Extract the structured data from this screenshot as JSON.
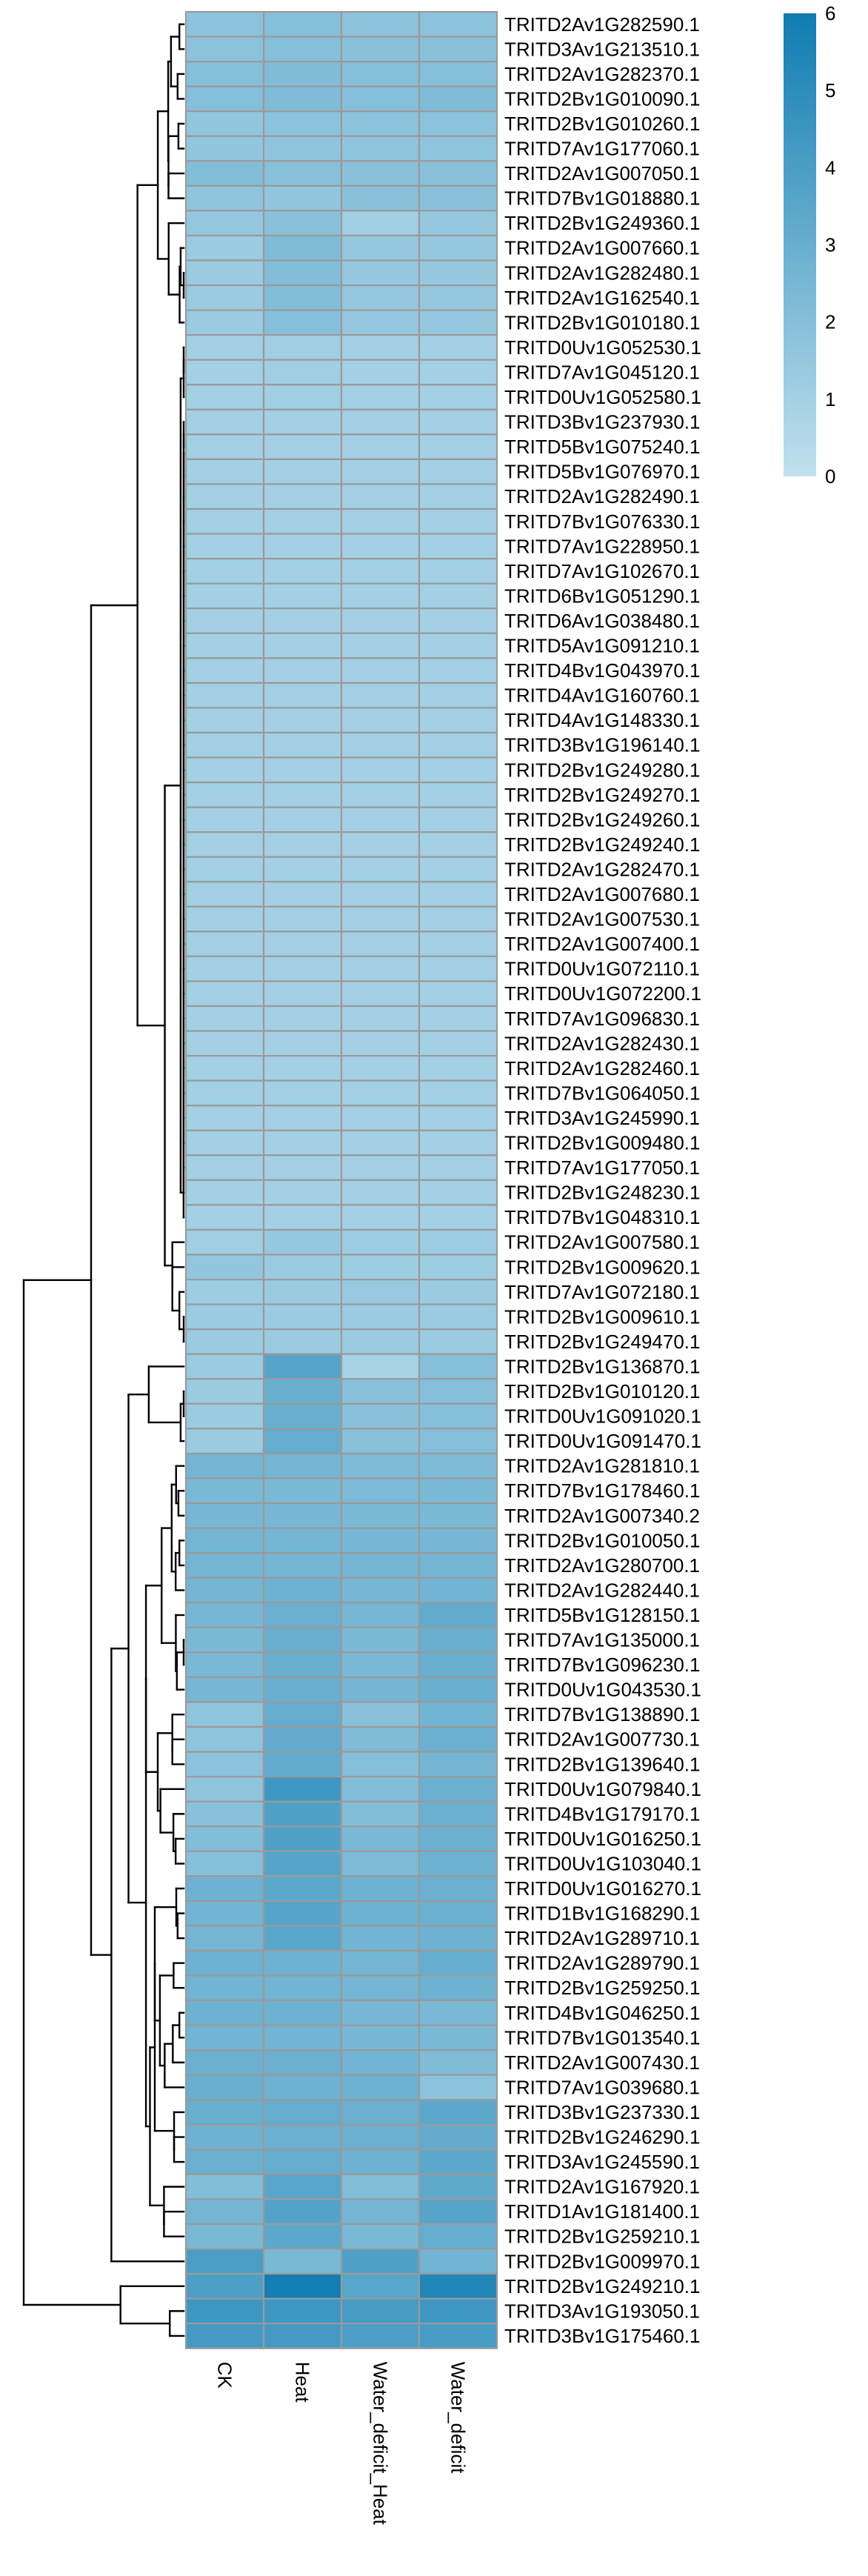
{
  "chart_data": {
    "type": "heatmap",
    "title": "",
    "columns": [
      "CK",
      "Heat",
      "Water_deficit_Heat",
      "Water_deficit"
    ],
    "rows": [
      "TRITD2Av1G282590.1",
      "TRITD3Av1G213510.1",
      "TRITD2Av1G282370.1",
      "TRITD2Bv1G010090.1",
      "TRITD2Bv1G010260.1",
      "TRITD7Av1G177060.1",
      "TRITD2Av1G007050.1",
      "TRITD7Bv1G018880.1",
      "TRITD2Bv1G249360.1",
      "TRITD2Av1G007660.1",
      "TRITD2Av1G282480.1",
      "TRITD2Av1G162540.1",
      "TRITD2Bv1G010180.1",
      "TRITD0Uv1G052530.1",
      "TRITD7Av1G045120.1",
      "TRITD0Uv1G052580.1",
      "TRITD3Bv1G237930.1",
      "TRITD5Bv1G075240.1",
      "TRITD5Bv1G076970.1",
      "TRITD2Av1G282490.1",
      "TRITD7Bv1G076330.1",
      "TRITD7Av1G228950.1",
      "TRITD7Av1G102670.1",
      "TRITD6Bv1G051290.1",
      "TRITD6Av1G038480.1",
      "TRITD5Av1G091210.1",
      "TRITD4Bv1G043970.1",
      "TRITD4Av1G160760.1",
      "TRITD4Av1G148330.1",
      "TRITD3Bv1G196140.1",
      "TRITD2Bv1G249280.1",
      "TRITD2Bv1G249270.1",
      "TRITD2Bv1G249260.1",
      "TRITD2Bv1G249240.1",
      "TRITD2Av1G282470.1",
      "TRITD2Av1G007680.1",
      "TRITD2Av1G007530.1",
      "TRITD2Av1G007400.1",
      "TRITD0Uv1G072110.1",
      "TRITD0Uv1G072200.1",
      "TRITD7Av1G096830.1",
      "TRITD2Av1G282430.1",
      "TRITD2Av1G282460.1",
      "TRITD7Bv1G064050.1",
      "TRITD3Av1G245990.1",
      "TRITD2Bv1G009480.1",
      "TRITD7Av1G177050.1",
      "TRITD2Bv1G248230.1",
      "TRITD7Bv1G048310.1",
      "TRITD2Av1G007580.1",
      "TRITD2Bv1G009620.1",
      "TRITD7Av1G072180.1",
      "TRITD2Bv1G009610.1",
      "TRITD2Bv1G249470.1",
      "TRITD2Bv1G136870.1",
      "TRITD2Bv1G010120.1",
      "TRITD0Uv1G091020.1",
      "TRITD0Uv1G091470.1",
      "TRITD2Av1G281810.1",
      "TRITD7Bv1G178460.1",
      "TRITD2Av1G007340.2",
      "TRITD2Bv1G010050.1",
      "TRITD2Av1G280700.1",
      "TRITD2Av1G282440.1",
      "TRITD5Bv1G128150.1",
      "TRITD7Av1G135000.1",
      "TRITD7Bv1G096230.1",
      "TRITD0Uv1G043530.1",
      "TRITD7Bv1G138890.1",
      "TRITD2Av1G007730.1",
      "TRITD2Bv1G139640.1",
      "TRITD0Uv1G079840.1",
      "TRITD4Bv1G179170.1",
      "TRITD0Uv1G016250.1",
      "TRITD0Uv1G103040.1",
      "TRITD0Uv1G016270.1",
      "TRITD1Bv1G168290.1",
      "TRITD2Av1G289710.1",
      "TRITD2Av1G289790.1",
      "TRITD2Bv1G259250.1",
      "TRITD4Bv1G046250.1",
      "TRITD7Bv1G013540.1",
      "TRITD2Av1G007430.1",
      "TRITD7Av1G039680.1",
      "TRITD3Bv1G237330.1",
      "TRITD2Bv1G246290.1",
      "TRITD3Av1G245590.1",
      "TRITD2Av1G167920.1",
      "TRITD1Av1G181400.1",
      "TRITD2Bv1G259210.1",
      "TRITD2Bv1G009970.1",
      "TRITD2Bv1G249210.1",
      "TRITD3Av1G193050.1",
      "TRITD3Bv1G175460.1"
    ],
    "values": [
      [
        1.8,
        2.0,
        1.8,
        1.8
      ],
      [
        1.8,
        2.0,
        1.9,
        1.9
      ],
      [
        2.0,
        2.2,
        2.0,
        2.0
      ],
      [
        2.0,
        2.2,
        2.0,
        2.2
      ],
      [
        1.6,
        1.8,
        1.8,
        1.8
      ],
      [
        1.6,
        1.7,
        1.7,
        1.7
      ],
      [
        2.1,
        1.9,
        1.9,
        1.9
      ],
      [
        1.7,
        1.6,
        1.9,
        1.9
      ],
      [
        1.5,
        1.9,
        1.1,
        1.5
      ],
      [
        1.3,
        2.2,
        1.5,
        1.5
      ],
      [
        1.3,
        2.1,
        1.5,
        1.5
      ],
      [
        1.3,
        2.1,
        1.5,
        1.5
      ],
      [
        1.3,
        2.0,
        1.5,
        1.5
      ],
      [
        1.0,
        1.1,
        1.0,
        1.0
      ],
      [
        1.0,
        1.1,
        1.0,
        1.0
      ],
      [
        1.0,
        1.1,
        1.0,
        1.0
      ],
      [
        1.0,
        1.0,
        1.0,
        1.0
      ],
      [
        1.0,
        1.0,
        1.0,
        1.0
      ],
      [
        1.0,
        1.0,
        1.0,
        1.0
      ],
      [
        1.0,
        1.0,
        1.0,
        1.0
      ],
      [
        1.0,
        1.0,
        1.0,
        1.0
      ],
      [
        1.0,
        1.0,
        1.0,
        1.0
      ],
      [
        1.0,
        1.0,
        1.0,
        1.0
      ],
      [
        1.0,
        1.0,
        1.0,
        1.0
      ],
      [
        1.0,
        1.0,
        1.0,
        1.0
      ],
      [
        1.0,
        1.0,
        1.0,
        1.0
      ],
      [
        1.0,
        1.0,
        1.0,
        1.0
      ],
      [
        1.0,
        1.0,
        1.0,
        1.0
      ],
      [
        1.0,
        1.0,
        1.0,
        1.0
      ],
      [
        1.0,
        1.0,
        1.0,
        1.0
      ],
      [
        1.0,
        1.0,
        1.0,
        1.0
      ],
      [
        1.0,
        1.0,
        1.0,
        1.0
      ],
      [
        1.0,
        1.0,
        1.0,
        1.0
      ],
      [
        1.0,
        1.0,
        1.0,
        1.0
      ],
      [
        1.0,
        1.0,
        1.0,
        1.0
      ],
      [
        1.0,
        1.0,
        1.0,
        1.0
      ],
      [
        1.0,
        1.0,
        1.0,
        1.0
      ],
      [
        1.0,
        1.0,
        1.0,
        1.0
      ],
      [
        1.0,
        1.0,
        1.0,
        1.0
      ],
      [
        1.0,
        1.0,
        1.0,
        1.0
      ],
      [
        1.0,
        1.0,
        1.0,
        1.0
      ],
      [
        1.0,
        1.0,
        1.0,
        1.0
      ],
      [
        1.0,
        1.0,
        1.0,
        1.0
      ],
      [
        1.0,
        1.0,
        1.0,
        1.0
      ],
      [
        1.0,
        1.0,
        1.0,
        1.0
      ],
      [
        1.0,
        1.0,
        1.0,
        1.0
      ],
      [
        1.0,
        1.0,
        1.0,
        1.0
      ],
      [
        1.0,
        1.0,
        1.0,
        1.0
      ],
      [
        1.0,
        1.0,
        1.0,
        1.0
      ],
      [
        1.1,
        1.5,
        1.2,
        1.2
      ],
      [
        1.6,
        1.3,
        1.2,
        1.2
      ],
      [
        1.2,
        1.3,
        1.4,
        1.3
      ],
      [
        1.3,
        1.3,
        1.3,
        1.3
      ],
      [
        1.3,
        1.3,
        1.3,
        1.3
      ],
      [
        1.3,
        3.6,
        0.9,
        2.0
      ],
      [
        1.3,
        3.0,
        1.9,
        2.0
      ],
      [
        1.3,
        3.0,
        1.9,
        2.0
      ],
      [
        1.3,
        3.1,
        1.9,
        2.0
      ],
      [
        2.6,
        2.6,
        2.3,
        2.3
      ],
      [
        2.4,
        2.4,
        2.3,
        2.4
      ],
      [
        2.5,
        2.5,
        2.4,
        2.4
      ],
      [
        2.6,
        2.6,
        2.5,
        2.5
      ],
      [
        2.6,
        2.6,
        2.6,
        2.6
      ],
      [
        2.6,
        2.8,
        2.5,
        2.7
      ],
      [
        2.5,
        2.9,
        2.5,
        3.2
      ],
      [
        2.4,
        3.0,
        2.4,
        3.0
      ],
      [
        2.4,
        3.0,
        2.4,
        3.0
      ],
      [
        2.5,
        3.0,
        2.6,
        3.0
      ],
      [
        1.7,
        3.1,
        1.9,
        2.7
      ],
      [
        1.7,
        3.2,
        2.2,
        2.9
      ],
      [
        1.8,
        3.2,
        2.0,
        2.6
      ],
      [
        1.7,
        4.4,
        2.1,
        2.9
      ],
      [
        1.9,
        3.8,
        2.1,
        2.9
      ],
      [
        2.1,
        3.8,
        2.4,
        2.9
      ],
      [
        2.0,
        3.6,
        2.3,
        2.8
      ],
      [
        2.8,
        3.4,
        2.8,
        2.9
      ],
      [
        2.7,
        3.6,
        2.8,
        2.9
      ],
      [
        2.6,
        3.5,
        2.7,
        2.8
      ],
      [
        2.8,
        2.8,
        2.6,
        3.1
      ],
      [
        2.7,
        2.7,
        2.6,
        2.8
      ],
      [
        2.8,
        2.8,
        2.5,
        2.4
      ],
      [
        2.7,
        2.7,
        2.5,
        2.4
      ],
      [
        2.9,
        2.9,
        2.7,
        2.2
      ],
      [
        3.0,
        2.8,
        2.8,
        1.8
      ],
      [
        3.0,
        3.1,
        2.9,
        3.4
      ],
      [
        2.8,
        2.9,
        2.9,
        3.2
      ],
      [
        2.9,
        3.1,
        2.8,
        3.4
      ],
      [
        2.1,
        3.5,
        2.1,
        3.3
      ],
      [
        2.6,
        3.7,
        2.6,
        3.6
      ],
      [
        2.4,
        3.4,
        2.4,
        3.1
      ],
      [
        4.0,
        2.4,
        3.8,
        2.7
      ],
      [
        3.9,
        5.9,
        3.5,
        5.4
      ],
      [
        4.4,
        4.4,
        4.1,
        4.4
      ],
      [
        4.2,
        4.2,
        3.9,
        4.1
      ]
    ],
    "colorbar": {
      "min": 0,
      "max": 6,
      "ticks": [
        0,
        1,
        2,
        3,
        4,
        5,
        6
      ]
    },
    "colors": {
      "low": "#c1e1ee",
      "high": "#0f7cb2",
      "border": "#9a9a9a",
      "tree": "#000000"
    },
    "row_dendrogram": true,
    "legend": "right"
  }
}
